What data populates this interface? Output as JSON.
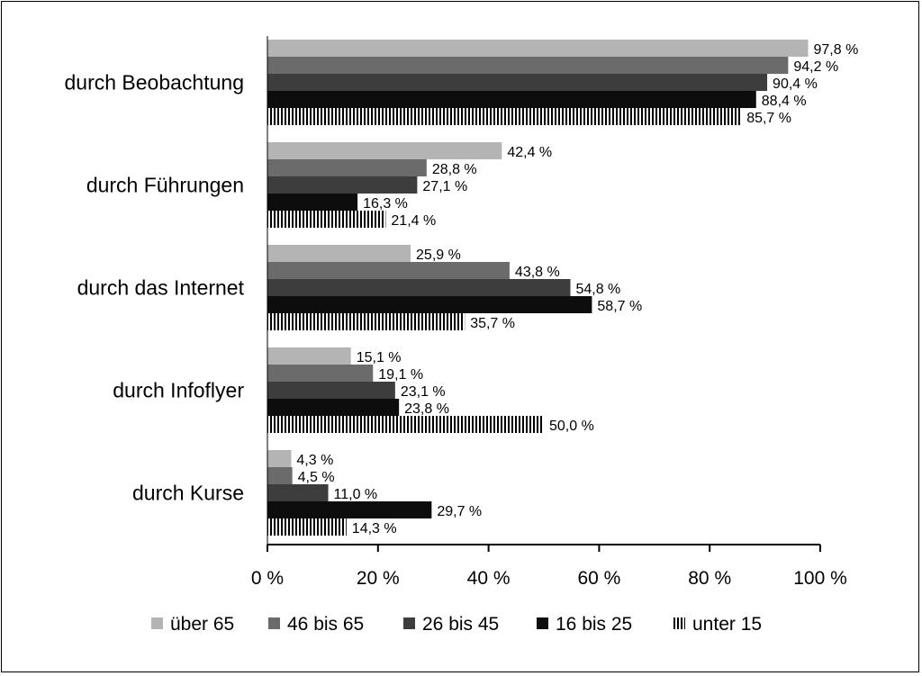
{
  "chart_data": {
    "type": "bar",
    "orientation": "horizontal",
    "categories": [
      "durch Beobachtung",
      "durch Führungen",
      "durch das Internet",
      "durch Infoflyer",
      "durch Kurse"
    ],
    "series": [
      {
        "name": "über 65",
        "values": [
          97.8,
          42.4,
          25.9,
          15.1,
          4.3
        ],
        "labels": [
          "97,8 %",
          "42,4 %",
          "25,9 %",
          "15,1 %",
          "4,3 %"
        ],
        "color": "#b4b4b4"
      },
      {
        "name": "46 bis 65",
        "values": [
          94.2,
          28.8,
          43.8,
          19.1,
          4.5
        ],
        "labels": [
          "94,2 %",
          "28,8 %",
          "43,8 %",
          "19,1 %",
          "4,5 %"
        ],
        "color": "#6b6b6b"
      },
      {
        "name": "26 bis 45",
        "values": [
          90.4,
          27.1,
          54.8,
          23.1,
          11.0
        ],
        "labels": [
          "90,4 %",
          "27,1 %",
          "54,8 %",
          "23,1 %",
          "11,0 %"
        ],
        "color": "#3d3d3d"
      },
      {
        "name": "16 bis 25",
        "values": [
          88.4,
          16.3,
          58.7,
          23.8,
          29.7
        ],
        "labels": [
          "88,4 %",
          "16,3 %",
          "58,7 %",
          "23,8 %",
          "29,7 %"
        ],
        "color": "#0d0d0d"
      },
      {
        "name": "unter 15",
        "values": [
          85.7,
          21.4,
          35.7,
          50.0,
          14.3
        ],
        "labels": [
          "85,7 %",
          "21,4 %",
          "35,7 %",
          "50,0 %",
          "14,3 %"
        ],
        "color": "#000000",
        "pattern": "vertical-stripes"
      }
    ],
    "x_ticks": [
      "0 %",
      "20 %",
      "40 %",
      "60 %",
      "80 %",
      "100 %"
    ],
    "xlim": [
      0,
      100
    ],
    "title": "",
    "xlabel": "",
    "ylabel": "",
    "grid": false,
    "legend_position": "bottom"
  }
}
